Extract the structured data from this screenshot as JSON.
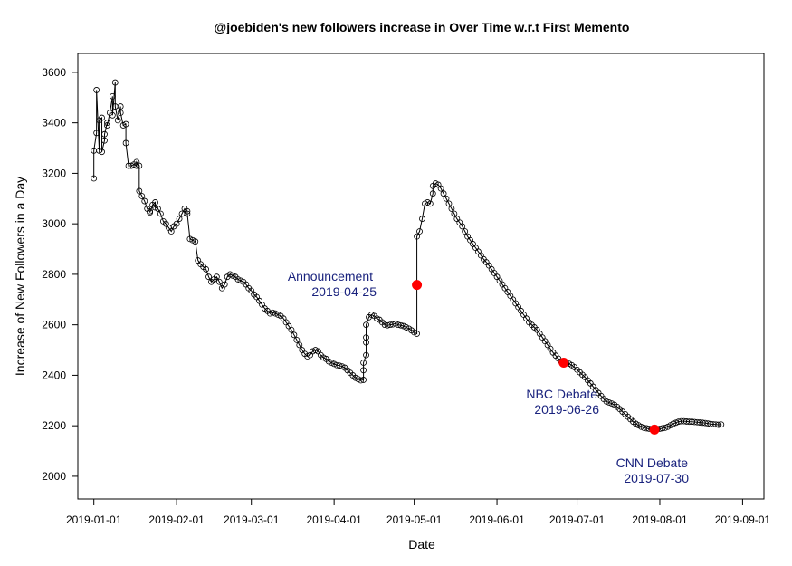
{
  "chart_data": {
    "type": "line",
    "title": "@joebiden's new followers increase in Over Time w.r.t First Memento",
    "xlabel": "Date",
    "ylabel": "Increase of New Followers in a Day",
    "xlim": [
      "2018-12-26",
      "2019-09-09"
    ],
    "ylim": [
      1910,
      3675
    ],
    "x_ticks": [
      "2019-01-01",
      "2019-02-01",
      "2019-03-01",
      "2019-04-01",
      "2019-05-01",
      "2019-06-01",
      "2019-07-01",
      "2019-08-01",
      "2019-09-01"
    ],
    "y_ticks": [
      2000,
      2200,
      2400,
      2600,
      2800,
      3000,
      3200,
      3400,
      3600
    ],
    "grid": false,
    "legend": "none",
    "colors": {
      "line": "#000000",
      "marker": "#000000",
      "highlight": "#ff0000",
      "annotation": "#1a237e"
    },
    "series": [
      {
        "points": [
          [
            "2019-01-01",
            3180
          ],
          [
            "2019-01-01",
            3290
          ],
          [
            "2019-01-02",
            3360
          ],
          [
            "2019-01-02",
            3530
          ],
          [
            "2019-01-03",
            3290
          ],
          [
            "2019-01-03",
            3410
          ],
          [
            "2019-01-04",
            3420
          ],
          [
            "2019-01-04",
            3285
          ],
          [
            "2019-01-05",
            3330
          ],
          [
            "2019-01-05",
            3355
          ],
          [
            "2019-01-06",
            3400
          ],
          [
            "2019-01-06",
            3390
          ],
          [
            "2019-01-07",
            3440
          ],
          [
            "2019-01-08",
            3505
          ],
          [
            "2019-01-08",
            3430
          ],
          [
            "2019-01-09",
            3560
          ],
          [
            "2019-01-09",
            3465
          ],
          [
            "2019-01-10",
            3410
          ],
          [
            "2019-01-11",
            3465
          ],
          [
            "2019-01-11",
            3440
          ],
          [
            "2019-01-12",
            3390
          ],
          [
            "2019-01-13",
            3395
          ],
          [
            "2019-01-13",
            3320
          ],
          [
            "2019-01-14",
            3230
          ],
          [
            "2019-01-15",
            3230
          ],
          [
            "2019-01-16",
            3235
          ],
          [
            "2019-01-17",
            3230
          ],
          [
            "2019-01-17",
            3245
          ],
          [
            "2019-01-18",
            3230
          ],
          [
            "2019-01-18",
            3130
          ],
          [
            "2019-01-19",
            3110
          ],
          [
            "2019-01-20",
            3090
          ],
          [
            "2019-01-21",
            3060
          ],
          [
            "2019-01-22",
            3050
          ],
          [
            "2019-01-22",
            3045
          ],
          [
            "2019-01-23",
            3075
          ],
          [
            "2019-01-24",
            3085
          ],
          [
            "2019-01-24",
            3065
          ],
          [
            "2019-01-25",
            3060
          ],
          [
            "2019-01-26",
            3040
          ],
          [
            "2019-01-27",
            3010
          ],
          [
            "2019-01-28",
            3000
          ],
          [
            "2019-01-29",
            2985
          ],
          [
            "2019-01-30",
            2970
          ],
          [
            "2019-01-31",
            2990
          ],
          [
            "2019-02-01",
            3000
          ],
          [
            "2019-02-02",
            3020
          ],
          [
            "2019-02-03",
            3040
          ],
          [
            "2019-02-04",
            3060
          ],
          [
            "2019-02-05",
            3050
          ],
          [
            "2019-02-05",
            3040
          ],
          [
            "2019-02-06",
            2940
          ],
          [
            "2019-02-07",
            2935
          ],
          [
            "2019-02-08",
            2930
          ],
          [
            "2019-02-09",
            2855
          ],
          [
            "2019-02-10",
            2840
          ],
          [
            "2019-02-11",
            2830
          ],
          [
            "2019-02-12",
            2820
          ],
          [
            "2019-02-13",
            2790
          ],
          [
            "2019-02-14",
            2770
          ],
          [
            "2019-02-15",
            2780
          ],
          [
            "2019-02-16",
            2790
          ],
          [
            "2019-02-17",
            2770
          ],
          [
            "2019-02-18",
            2745
          ],
          [
            "2019-02-19",
            2760
          ],
          [
            "2019-02-20",
            2790
          ],
          [
            "2019-02-21",
            2800
          ],
          [
            "2019-02-22",
            2795
          ],
          [
            "2019-02-23",
            2790
          ],
          [
            "2019-02-24",
            2780
          ],
          [
            "2019-02-25",
            2775
          ],
          [
            "2019-02-26",
            2770
          ],
          [
            "2019-02-27",
            2760
          ],
          [
            "2019-02-28",
            2745
          ],
          [
            "2019-03-01",
            2735
          ],
          [
            "2019-03-02",
            2720
          ],
          [
            "2019-03-03",
            2710
          ],
          [
            "2019-03-04",
            2695
          ],
          [
            "2019-03-05",
            2680
          ],
          [
            "2019-03-06",
            2665
          ],
          [
            "2019-03-07",
            2655
          ],
          [
            "2019-03-08",
            2645
          ],
          [
            "2019-03-09",
            2648
          ],
          [
            "2019-03-10",
            2645
          ],
          [
            "2019-03-11",
            2640
          ],
          [
            "2019-03-12",
            2635
          ],
          [
            "2019-03-13",
            2625
          ],
          [
            "2019-03-14",
            2610
          ],
          [
            "2019-03-15",
            2595
          ],
          [
            "2019-03-16",
            2580
          ],
          [
            "2019-03-17",
            2560
          ],
          [
            "2019-03-18",
            2540
          ],
          [
            "2019-03-19",
            2520
          ],
          [
            "2019-03-20",
            2500
          ],
          [
            "2019-03-21",
            2485
          ],
          [
            "2019-03-22",
            2475
          ],
          [
            "2019-03-23",
            2480
          ],
          [
            "2019-03-24",
            2495
          ],
          [
            "2019-03-25",
            2500
          ],
          [
            "2019-03-26",
            2495
          ],
          [
            "2019-03-27",
            2480
          ],
          [
            "2019-03-28",
            2470
          ],
          [
            "2019-03-29",
            2465
          ],
          [
            "2019-03-30",
            2455
          ],
          [
            "2019-03-31",
            2450
          ],
          [
            "2019-04-01",
            2445
          ],
          [
            "2019-04-02",
            2440
          ],
          [
            "2019-04-03",
            2438
          ],
          [
            "2019-04-04",
            2435
          ],
          [
            "2019-04-05",
            2430
          ],
          [
            "2019-04-06",
            2420
          ],
          [
            "2019-04-07",
            2410
          ],
          [
            "2019-04-08",
            2400
          ],
          [
            "2019-04-09",
            2390
          ],
          [
            "2019-04-10",
            2385
          ],
          [
            "2019-04-11",
            2380
          ],
          [
            "2019-04-12",
            2382
          ],
          [
            "2019-04-12",
            2420
          ],
          [
            "2019-04-12",
            2450
          ],
          [
            "2019-04-13",
            2480
          ],
          [
            "2019-04-13",
            2530
          ],
          [
            "2019-04-13",
            2550
          ],
          [
            "2019-04-13",
            2600
          ],
          [
            "2019-04-14",
            2630
          ],
          [
            "2019-04-15",
            2640
          ],
          [
            "2019-04-16",
            2635
          ],
          [
            "2019-04-17",
            2625
          ],
          [
            "2019-04-18",
            2620
          ],
          [
            "2019-04-19",
            2610
          ],
          [
            "2019-04-20",
            2600
          ],
          [
            "2019-04-21",
            2598
          ],
          [
            "2019-04-22",
            2600
          ],
          [
            "2019-04-23",
            2602
          ],
          [
            "2019-04-24",
            2605
          ],
          [
            "2019-04-25",
            2600
          ],
          [
            "2019-04-26",
            2598
          ],
          [
            "2019-04-27",
            2595
          ],
          [
            "2019-04-28",
            2590
          ],
          [
            "2019-04-29",
            2585
          ],
          [
            "2019-04-30",
            2578
          ],
          [
            "2019-05-01",
            2570
          ],
          [
            "2019-05-02",
            2565
          ],
          [
            "2019-05-02",
            2760
          ],
          [
            "2019-05-02",
            2950
          ],
          [
            "2019-05-03",
            2970
          ],
          [
            "2019-05-04",
            3020
          ],
          [
            "2019-05-05",
            3080
          ],
          [
            "2019-05-06",
            3085
          ],
          [
            "2019-05-07",
            3080
          ],
          [
            "2019-05-08",
            3120
          ],
          [
            "2019-05-08",
            3150
          ],
          [
            "2019-05-09",
            3160
          ],
          [
            "2019-05-10",
            3155
          ],
          [
            "2019-05-11",
            3140
          ],
          [
            "2019-05-12",
            3120
          ],
          [
            "2019-05-13",
            3100
          ],
          [
            "2019-05-14",
            3080
          ],
          [
            "2019-05-15",
            3060
          ],
          [
            "2019-05-16",
            3040
          ],
          [
            "2019-05-17",
            3020
          ],
          [
            "2019-05-18",
            3005
          ],
          [
            "2019-05-19",
            2990
          ],
          [
            "2019-05-20",
            2970
          ],
          [
            "2019-05-21",
            2950
          ],
          [
            "2019-05-22",
            2935
          ],
          [
            "2019-05-23",
            2920
          ],
          [
            "2019-05-24",
            2905
          ],
          [
            "2019-05-25",
            2890
          ],
          [
            "2019-05-26",
            2875
          ],
          [
            "2019-05-27",
            2860
          ],
          [
            "2019-05-28",
            2848
          ],
          [
            "2019-05-29",
            2835
          ],
          [
            "2019-05-30",
            2820
          ],
          [
            "2019-05-31",
            2805
          ],
          [
            "2019-06-01",
            2790
          ],
          [
            "2019-06-02",
            2775
          ],
          [
            "2019-06-03",
            2760
          ],
          [
            "2019-06-04",
            2745
          ],
          [
            "2019-06-05",
            2730
          ],
          [
            "2019-06-06",
            2715
          ],
          [
            "2019-06-07",
            2700
          ],
          [
            "2019-06-08",
            2685
          ],
          [
            "2019-06-09",
            2670
          ],
          [
            "2019-06-10",
            2655
          ],
          [
            "2019-06-11",
            2640
          ],
          [
            "2019-06-12",
            2625
          ],
          [
            "2019-06-13",
            2610
          ],
          [
            "2019-06-14",
            2600
          ],
          [
            "2019-06-15",
            2590
          ],
          [
            "2019-06-16",
            2580
          ],
          [
            "2019-06-17",
            2565
          ],
          [
            "2019-06-18",
            2550
          ],
          [
            "2019-06-19",
            2535
          ],
          [
            "2019-06-20",
            2520
          ],
          [
            "2019-06-21",
            2505
          ],
          [
            "2019-06-22",
            2490
          ],
          [
            "2019-06-23",
            2478
          ],
          [
            "2019-06-24",
            2466
          ],
          [
            "2019-06-25",
            2455
          ],
          [
            "2019-06-26",
            2450
          ],
          [
            "2019-06-27",
            2448
          ],
          [
            "2019-06-28",
            2446
          ],
          [
            "2019-06-29",
            2440
          ],
          [
            "2019-06-30",
            2432
          ],
          [
            "2019-07-01",
            2422
          ],
          [
            "2019-07-02",
            2412
          ],
          [
            "2019-07-03",
            2402
          ],
          [
            "2019-07-04",
            2392
          ],
          [
            "2019-07-05",
            2380
          ],
          [
            "2019-07-06",
            2368
          ],
          [
            "2019-07-07",
            2355
          ],
          [
            "2019-07-08",
            2342
          ],
          [
            "2019-07-09",
            2330
          ],
          [
            "2019-07-10",
            2318
          ],
          [
            "2019-07-11",
            2306
          ],
          [
            "2019-07-12",
            2296
          ],
          [
            "2019-07-13",
            2292
          ],
          [
            "2019-07-14",
            2288
          ],
          [
            "2019-07-15",
            2283
          ],
          [
            "2019-07-16",
            2275
          ],
          [
            "2019-07-17",
            2266
          ],
          [
            "2019-07-18",
            2256
          ],
          [
            "2019-07-19",
            2246
          ],
          [
            "2019-07-20",
            2236
          ],
          [
            "2019-07-21",
            2226
          ],
          [
            "2019-07-22",
            2216
          ],
          [
            "2019-07-23",
            2208
          ],
          [
            "2019-07-24",
            2202
          ],
          [
            "2019-07-25",
            2196
          ],
          [
            "2019-07-26",
            2192
          ],
          [
            "2019-07-27",
            2190
          ],
          [
            "2019-07-28",
            2188
          ],
          [
            "2019-07-29",
            2187
          ],
          [
            "2019-07-30",
            2185
          ],
          [
            "2019-07-31",
            2186
          ],
          [
            "2019-08-01",
            2188
          ],
          [
            "2019-08-02",
            2190
          ],
          [
            "2019-08-03",
            2192
          ],
          [
            "2019-08-04",
            2196
          ],
          [
            "2019-08-05",
            2202
          ],
          [
            "2019-08-06",
            2208
          ],
          [
            "2019-08-07",
            2212
          ],
          [
            "2019-08-08",
            2216
          ],
          [
            "2019-08-09",
            2218
          ],
          [
            "2019-08-10",
            2218
          ],
          [
            "2019-08-11",
            2217
          ],
          [
            "2019-08-12",
            2216
          ],
          [
            "2019-08-13",
            2216
          ],
          [
            "2019-08-14",
            2215
          ],
          [
            "2019-08-15",
            2214
          ],
          [
            "2019-08-16",
            2213
          ],
          [
            "2019-08-17",
            2212
          ],
          [
            "2019-08-18",
            2211
          ],
          [
            "2019-08-19",
            2209
          ],
          [
            "2019-08-20",
            2207
          ],
          [
            "2019-08-21",
            2206
          ],
          [
            "2019-08-22",
            2205
          ],
          [
            "2019-08-23",
            2204
          ],
          [
            "2019-08-24",
            2205
          ]
        ]
      }
    ],
    "highlights": [
      {
        "x": "2019-05-02",
        "y": 2758
      },
      {
        "x": "2019-06-26",
        "y": 2450
      },
      {
        "x": "2019-07-30",
        "y": 2185
      }
    ],
    "annotations": [
      {
        "line1": "Announcement",
        "line2": "2019-04-25"
      },
      {
        "line1": "NBC Debate",
        "line2": "2019-06-26"
      },
      {
        "line1": "CNN Debate",
        "line2": "2019-07-30"
      }
    ]
  }
}
